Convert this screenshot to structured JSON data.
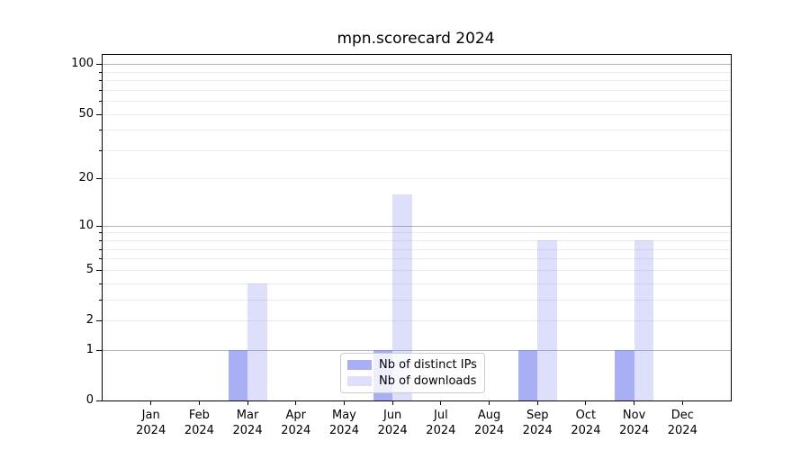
{
  "title": "mpn.scorecard 2024",
  "legend": {
    "position": "lower center",
    "items": [
      {
        "label": "Nb of distinct IPs",
        "color": "rgba(99,110,235,0.55)"
      },
      {
        "label": "Nb of downloads",
        "color": "rgba(99,110,235,0.22)"
      }
    ]
  },
  "colors": {
    "background": "#ffffff",
    "bar_distinct_ips": "rgba(99,110,235,0.55)",
    "bar_downloads": "rgba(99,110,235,0.22)",
    "gridline_major": "#b3b3b3",
    "gridline_minor": "#ececec",
    "axis_spine": "#000000"
  },
  "chart_data": {
    "type": "bar",
    "title": "mpn.scorecard 2024",
    "categories": [
      "Jan",
      "Feb",
      "Mar",
      "Apr",
      "May",
      "Jun",
      "Jul",
      "Aug",
      "Sep",
      "Oct",
      "Nov",
      "Dec"
    ],
    "year": "2024",
    "series": [
      {
        "name": "Nb of distinct IPs",
        "values": [
          0,
          0,
          1,
          0,
          0,
          1,
          0,
          0,
          1,
          0,
          1,
          0
        ],
        "color": "rgba(99,110,235,0.55)"
      },
      {
        "name": "Nb of downloads",
        "values": [
          0,
          0,
          4,
          0,
          0,
          16,
          0,
          0,
          8,
          0,
          8,
          0
        ],
        "color": "rgba(99,110,235,0.22)"
      }
    ],
    "xlabel": "",
    "ylabel": "",
    "yscale": "symlog-log1p",
    "yticks": [
      0,
      1,
      2,
      5,
      10,
      20,
      50,
      100
    ],
    "ytick_labels": [
      "0",
      "1",
      "2",
      "5",
      "10",
      "20",
      "50",
      "100"
    ],
    "minor_gridlines": [
      3,
      4,
      6,
      7,
      8,
      9,
      30,
      40,
      60,
      70,
      80,
      90
    ],
    "ylim": [
      0,
      113
    ],
    "grid": true,
    "legend_position": "lower center"
  }
}
